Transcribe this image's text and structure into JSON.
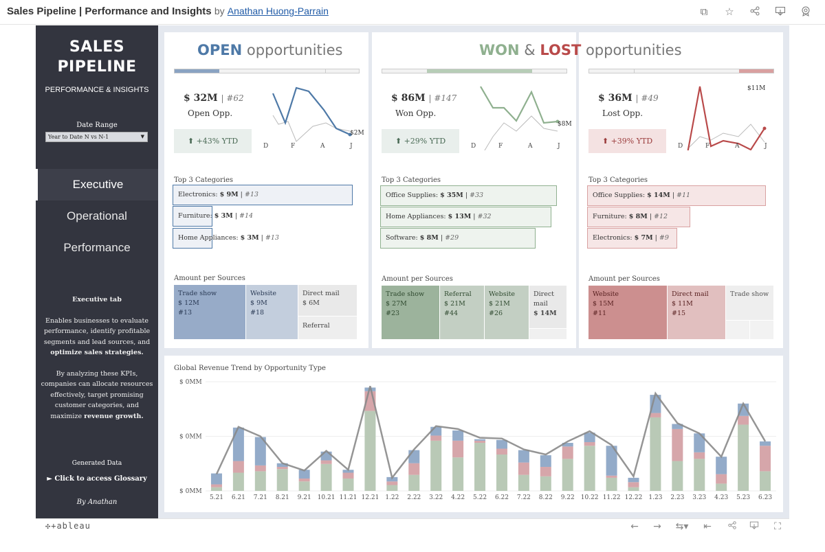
{
  "header": {
    "title": "Sales Pipeline | Performance and Insights",
    "by": "by",
    "author": "Anathan Huong-Parrain",
    "icons": [
      "copy-icon",
      "star-icon",
      "share-icon",
      "download-icon",
      "badge-icon"
    ]
  },
  "sidebar": {
    "title_line1": "SALES",
    "title_line2": "PIPELINE",
    "subtitle": "PERFORMANCE & INSIGHTS",
    "date_label": "Date Range",
    "date_value": "Year to Date N vs N-1",
    "nav": [
      "Executive",
      "Operational",
      "Performance"
    ],
    "desc_heading": "Executive tab",
    "desc_p1_a": "Enables businesses to evaluate performance, identify profitable segments and lead sources, and ",
    "desc_p1_b": "optimize sales strategies.",
    "desc_p2_a": "By analyzing these KPIs, companies can allocate resources effectively, target promising customer categories, and maximize ",
    "desc_p2_b": "revenue growth.",
    "generated": "Generated Data",
    "glossary": "► Click to access Glossary",
    "byline": "By Anathan"
  },
  "open": {
    "title_strong": "OPEN",
    "title_rest": " opportunities",
    "value": "$ 32M",
    "count": "#62",
    "label": "Open Opp.",
    "ytd": "+43% YTD",
    "end_label": "$2M",
    "months": [
      "D",
      "F",
      "A",
      "J"
    ],
    "top_label": "Top 3 Categories",
    "categories": [
      {
        "name": "Electronics:",
        "value": "$ 9M",
        "count": "#13"
      },
      {
        "name": "Furniture:",
        "value": "$ 3M",
        "count": "#14"
      },
      {
        "name": "Home Appliances:",
        "value": "$ 3M",
        "count": "#13"
      }
    ],
    "sources_label": "Amount per Sources",
    "sources": [
      {
        "name": "Trade show",
        "value": "$ 12M",
        "count": "#13"
      },
      {
        "name": "Website",
        "value": "$ 9M",
        "count": "#18"
      },
      {
        "name": "Direct mail",
        "value": "$ 6M",
        "count": ""
      },
      {
        "name": "Referral",
        "value": "",
        "count": ""
      }
    ]
  },
  "wonlost": {
    "won": "WON",
    "amp": " & ",
    "lost": "LOST",
    "rest": " opportunities"
  },
  "won": {
    "value": "$ 86M",
    "count": "#147",
    "label": "Won Opp.",
    "ytd": "+29% YTD",
    "end_label": "$8M",
    "months": [
      "D",
      "F",
      "A",
      "J"
    ],
    "top_label": "Top 3 Categories",
    "categories": [
      {
        "name": "Office Supplies:",
        "value": "$ 35M",
        "count": "#33"
      },
      {
        "name": "Home Appliances:",
        "value": "$ 13M",
        "count": "#32"
      },
      {
        "name": "Software:",
        "value": "$ 8M",
        "count": "#29"
      }
    ],
    "sources_label": "Amount per Sources",
    "sources": [
      {
        "name": "Trade show",
        "value": "$ 27M",
        "count": "#23"
      },
      {
        "name": "Referral",
        "value": "$ 21M",
        "count": "#44"
      },
      {
        "name": "Website",
        "value": "$ 21M",
        "count": "#26"
      },
      {
        "name": "Direct mail",
        "value": "$ 14M",
        "count": ""
      }
    ]
  },
  "lost": {
    "value": "$ 36M",
    "count": "#49",
    "label": "Lost Opp.",
    "ytd": "+39% YTD",
    "end_label": "$11M",
    "months": [
      "D",
      "F",
      "A",
      "J"
    ],
    "top_label": "Top 3 Categories",
    "categories": [
      {
        "name": "Office Supplies:",
        "value": "$ 14M",
        "count": "#11"
      },
      {
        "name": "Furniture:",
        "value": "$ 8M",
        "count": "#12"
      },
      {
        "name": "Electronics:",
        "value": "$ 7M",
        "count": "#9"
      }
    ],
    "sources_label": "Amount per Sources",
    "sources": [
      {
        "name": "Website",
        "value": "$ 15M",
        "count": "#11"
      },
      {
        "name": "Direct mail",
        "value": "$ 11M",
        "count": "#15"
      },
      {
        "name": "Trade show",
        "value": "",
        "count": ""
      }
    ]
  },
  "colors": {
    "open": "#4e79a7",
    "won": "#8fb08f",
    "lost": "#b94a4a",
    "sidebar": "#33353f"
  },
  "chart_data": {
    "type": "bar",
    "title": "Global Revenue Trend by Opportunity Type",
    "y_tick_labels": [
      "$ 0MM",
      "$ 0MM",
      "$ 0MM"
    ],
    "categories": [
      "5.21",
      "6.21",
      "7.21",
      "8.21",
      "9.21",
      "10.21",
      "11.21",
      "12.21",
      "1.22",
      "2.22",
      "3.22",
      "4.22",
      "5.22",
      "6.22",
      "7.22",
      "8.22",
      "9.22",
      "10.22",
      "11.22",
      "12.22",
      "1.23",
      "2.23",
      "3.23",
      "4.23",
      "5.23",
      "6.23"
    ],
    "series": [
      {
        "values": [
          0.5,
          2.5,
          2.7,
          3.0,
          1.3,
          3.7,
          1.7,
          11.0,
          0.8,
          2.2,
          6.9,
          4.6,
          6.6,
          5.0,
          2.2,
          2.0,
          4.4,
          6.2,
          1.8,
          0.5,
          10.1,
          4.1,
          4.4,
          1.0,
          9.1,
          2.7
        ]
      },
      {
        "values": [
          0.4,
          1.6,
          0.8,
          0.3,
          0.4,
          0.5,
          0.8,
          2.7,
          0.5,
          1.6,
          0.7,
          2.3,
          0.3,
          0.8,
          1.7,
          1.3,
          1.7,
          0.5,
          0.3,
          0.7,
          0.6,
          4.4,
          0.9,
          1.3,
          1.2,
          3.5
        ]
      },
      {
        "values": [
          1.5,
          4.6,
          3.9,
          0.5,
          1.2,
          1.2,
          0.4,
          0.5,
          0.6,
          1.8,
          1.2,
          1.4,
          0.2,
          1.2,
          1.7,
          1.6,
          0.5,
          1.3,
          4.1,
          0.6,
          2.5,
          0.7,
          2.6,
          2.4,
          1.7,
          0.6
        ]
      }
    ],
    "total_line": [
      2.3,
      8.8,
      7.5,
      3.8,
      2.8,
      5.5,
      2.9,
      14.4,
      1.8,
      5.7,
      8.9,
      8.5,
      7.3,
      7.2,
      5.7,
      5.0,
      6.8,
      8.2,
      6.3,
      2.0,
      13.4,
      9.3,
      7.9,
      4.7,
      12.0,
      6.8
    ]
  }
}
